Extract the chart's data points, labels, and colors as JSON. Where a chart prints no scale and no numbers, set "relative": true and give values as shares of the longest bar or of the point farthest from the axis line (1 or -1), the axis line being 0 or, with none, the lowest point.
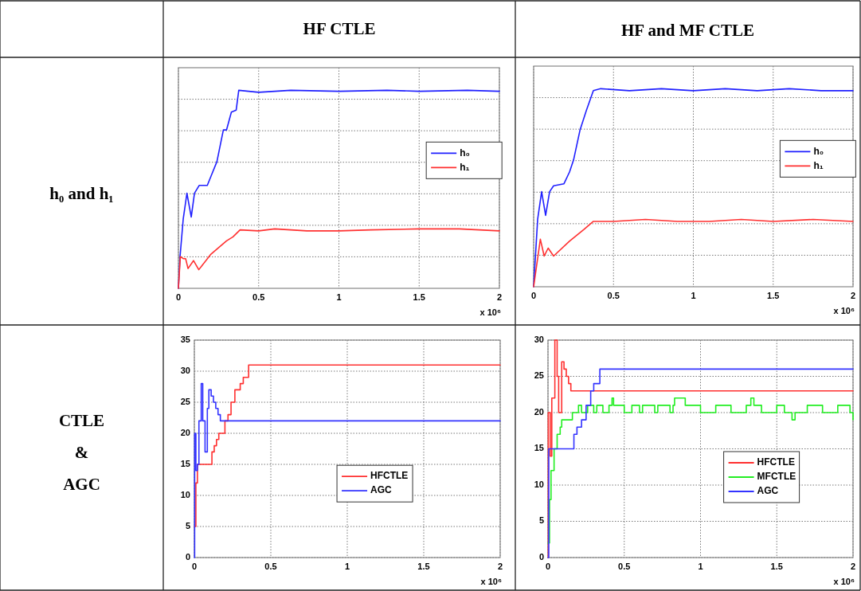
{
  "chart_data": [
    {
      "type": "other",
      "annotations": [
        "HF CTLE",
        "HF and MF CTLE",
        "h₀ and h₁",
        "CTLE & AGC"
      ]
    },
    {
      "type": "line",
      "relative": true,
      "grid": true,
      "legend": "right",
      "xlim": [
        0,
        2
      ],
      "xticks": [
        0,
        0.5,
        1,
        1.5,
        2
      ],
      "annotations": [
        "x 10⁶"
      ],
      "series": [
        {
          "name": "h₀",
          "color": "#1f1fff",
          "x": [
            0,
            0.01,
            0.03,
            0.053,
            0.08,
            0.1,
            0.13,
            0.18,
            0.2,
            0.24,
            0.28,
            0.3,
            0.33,
            0.36,
            0.376,
            0.5,
            0.7,
            1,
            1.3,
            1.5,
            1.8,
            2
          ],
          "values": [
            0,
            0.16,
            0.35,
            0.48,
            0.36,
            0.48,
            0.52,
            0.52,
            0.56,
            0.64,
            0.8,
            0.8,
            0.89,
            0.9,
            1,
            0.99,
            1,
            0.995,
            1,
            0.995,
            1,
            0.995
          ]
        },
        {
          "name": "h₁",
          "color": "#ff3030",
          "x": [
            0,
            0.012,
            0.03,
            0.045,
            0.06,
            0.094,
            0.127,
            0.2,
            0.3,
            0.34,
            0.384,
            0.5,
            0.6,
            0.8,
            1,
            1.2,
            1.5,
            1.75,
            2
          ],
          "values": [
            0,
            0.16,
            0.15,
            0.15,
            0.1,
            0.14,
            0.094,
            0.17,
            0.24,
            0.26,
            0.295,
            0.29,
            0.3,
            0.29,
            0.29,
            0.295,
            0.3,
            0.3,
            0.29
          ]
        }
      ]
    },
    {
      "type": "line",
      "relative": true,
      "grid": true,
      "legend": "right",
      "xlim": [
        0,
        2
      ],
      "xticks": [
        0,
        0.5,
        1,
        1.5,
        2
      ],
      "annotations": [
        "x 10⁶"
      ],
      "series": [
        {
          "name": "h₀",
          "color": "#1f1fff",
          "x": [
            0,
            0.005,
            0.025,
            0.05,
            0.075,
            0.1,
            0.125,
            0.19,
            0.225,
            0.25,
            0.29,
            0.33,
            0.374,
            0.42,
            0.6,
            0.8,
            1,
            1.2,
            1.4,
            1.6,
            1.8,
            2
          ],
          "values": [
            0,
            0.07,
            0.34,
            0.48,
            0.36,
            0.48,
            0.51,
            0.52,
            0.58,
            0.64,
            0.79,
            0.89,
            0.99,
            1,
            0.99,
            1,
            0.99,
            1,
            0.99,
            1,
            0.99,
            0.99
          ]
        },
        {
          "name": "h₁",
          "color": "#ff3030",
          "x": [
            0,
            0.042,
            0.066,
            0.091,
            0.125,
            0.224,
            0.316,
            0.374,
            0.5,
            0.7,
            0.9,
            1.1,
            1.3,
            1.5,
            1.75,
            2
          ],
          "values": [
            0,
            0.24,
            0.155,
            0.195,
            0.155,
            0.23,
            0.29,
            0.33,
            0.33,
            0.34,
            0.33,
            0.33,
            0.34,
            0.33,
            0.34,
            0.33
          ]
        }
      ]
    },
    {
      "type": "step",
      "grid": true,
      "legend": "center",
      "xlim": [
        0,
        2
      ],
      "xticks": [
        0,
        0.5,
        1,
        1.5,
        2
      ],
      "ylim": [
        0,
        35
      ],
      "yticks": [
        0,
        5,
        10,
        15,
        20,
        25,
        30,
        35
      ],
      "annotations": [
        "x 10⁶"
      ],
      "series": [
        {
          "name": "HFCTLE",
          "color": "#ff3030",
          "x": [
            0,
            0.01,
            0.02,
            0.115,
            0.13,
            0.145,
            0.16,
            0.2,
            0.22,
            0.24,
            0.265,
            0.3,
            0.32,
            0.355,
            2
          ],
          "values": [
            5,
            12,
            15,
            17,
            18,
            19,
            20,
            22,
            23,
            25,
            27,
            28,
            29,
            31,
            31
          ]
        },
        {
          "name": "AGC",
          "color": "#3333ff",
          "x": [
            0,
            0.002,
            0.01,
            0.02,
            0.03,
            0.045,
            0.055,
            0.07,
            0.085,
            0.095,
            0.11,
            0.125,
            0.14,
            0.155,
            0.17,
            2
          ],
          "values": [
            0,
            20,
            14,
            15,
            22,
            28,
            22,
            17,
            24,
            27,
            26,
            25,
            24,
            23,
            22,
            22
          ]
        }
      ]
    },
    {
      "type": "step",
      "grid": true,
      "legend": "center right",
      "xlim": [
        0,
        2
      ],
      "xticks": [
        0,
        0.5,
        1,
        1.5,
        2
      ],
      "ylim": [
        0,
        30
      ],
      "yticks": [
        0,
        5,
        10,
        15,
        20,
        25,
        30
      ],
      "annotations": [
        "x 10⁶"
      ],
      "series": [
        {
          "name": "HFCTLE",
          "color": "#ff3030",
          "x": [
            0,
            0.002,
            0.015,
            0.025,
            0.045,
            0.06,
            0.07,
            0.09,
            0.105,
            0.12,
            0.135,
            0.15,
            2
          ],
          "values": [
            0,
            20,
            14,
            22,
            30,
            25,
            20,
            27,
            26,
            25,
            24,
            23,
            23
          ]
        },
        {
          "name": "MFCTLE",
          "color": "#22ee22",
          "x": [
            0,
            0.01,
            0.02,
            0.04,
            0.06,
            0.08,
            0.09,
            0.12,
            0.16,
            0.2,
            0.22,
            0.26,
            0.3,
            0.32,
            0.36,
            0.4,
            0.42,
            0.43,
            0.5,
            0.55,
            0.6,
            0.62,
            0.7,
            0.72,
            0.8,
            0.82,
            0.83,
            0.9,
            1.0,
            1.1,
            1.2,
            1.3,
            1.33,
            1.35,
            1.4,
            1.5,
            1.55,
            1.6,
            1.62,
            1.7,
            1.8,
            1.9,
            1.98,
            2
          ],
          "values": [
            2,
            8,
            12,
            15,
            17,
            18,
            19,
            19,
            20,
            21,
            20,
            21,
            20,
            21,
            20,
            21,
            22,
            21,
            20,
            21,
            20,
            21,
            20,
            21,
            20,
            21,
            22,
            21,
            20,
            21,
            20,
            21,
            22,
            21,
            20,
            21,
            20,
            19,
            20,
            21,
            20,
            21,
            20,
            19
          ]
        },
        {
          "name": "AGC",
          "color": "#3333ff",
          "x": [
            0,
            0.005,
            0.17,
            0.19,
            0.22,
            0.25,
            0.28,
            0.3,
            0.34,
            2
          ],
          "values": [
            0,
            15,
            17,
            18,
            19,
            21,
            23,
            24,
            26,
            26
          ]
        }
      ]
    }
  ]
}
